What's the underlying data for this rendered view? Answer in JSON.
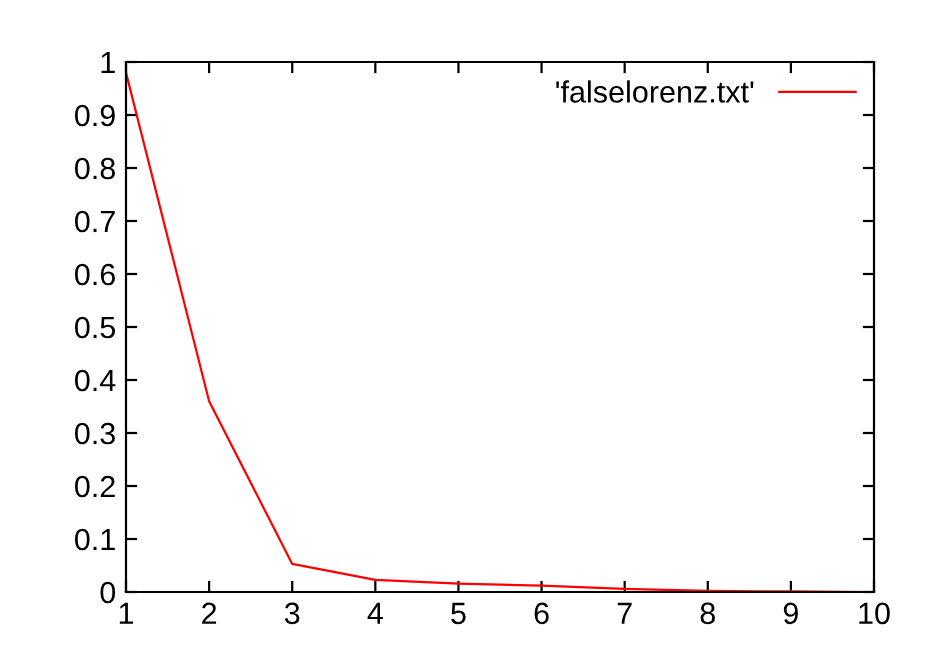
{
  "chart_data": {
    "type": "line",
    "x": [
      1,
      2,
      3,
      4,
      5,
      6,
      7,
      8,
      9,
      10
    ],
    "series": [
      {
        "name": "'falselorenz.txt'",
        "color": "#ff0000",
        "values": [
          0.98,
          0.36,
          0.053,
          0.023,
          0.016,
          0.012,
          0.006,
          0.002,
          0.001,
          0.0
        ]
      }
    ],
    "xlim": [
      1,
      10
    ],
    "xticks": [
      1,
      2,
      3,
      4,
      5,
      6,
      7,
      8,
      9,
      10
    ],
    "ylim": [
      0,
      1
    ],
    "yticks": [
      0,
      0.1,
      0.2,
      0.3,
      0.4,
      0.5,
      0.6,
      0.7,
      0.8,
      0.9,
      1
    ],
    "legend": "top right",
    "grid": false,
    "marker": "none",
    "line_style": "solid"
  }
}
